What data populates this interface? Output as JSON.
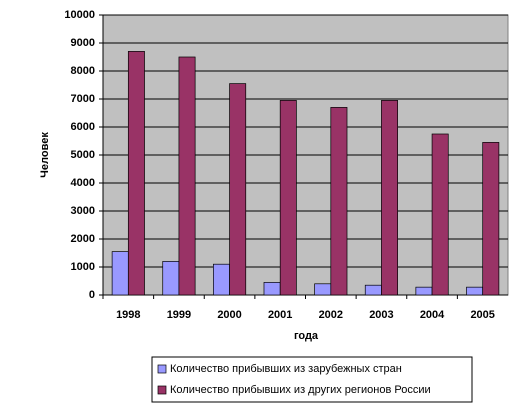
{
  "chart_data": {
    "type": "bar",
    "y_label": "Человек",
    "x_label": "года",
    "categories": [
      "1998",
      "1999",
      "2000",
      "2001",
      "2002",
      "2003",
      "2004",
      "2005"
    ],
    "series": [
      {
        "name": "Количество прибывших из зарубежных стран",
        "color": "#9999ff",
        "values": [
          1550,
          1200,
          1100,
          450,
          400,
          350,
          280,
          280
        ]
      },
      {
        "name": "Количество прибывших из других регионов России",
        "color": "#993366",
        "values": [
          8700,
          8500,
          7550,
          6950,
          6700,
          6950,
          5750,
          5450
        ]
      }
    ],
    "ylim": [
      0,
      10000
    ],
    "yticks": [
      0,
      1000,
      2000,
      3000,
      4000,
      5000,
      6000,
      7000,
      8000,
      9000,
      10000
    ],
    "grid": true,
    "legend": "bottom",
    "plot_background": "#c0c0c0"
  }
}
